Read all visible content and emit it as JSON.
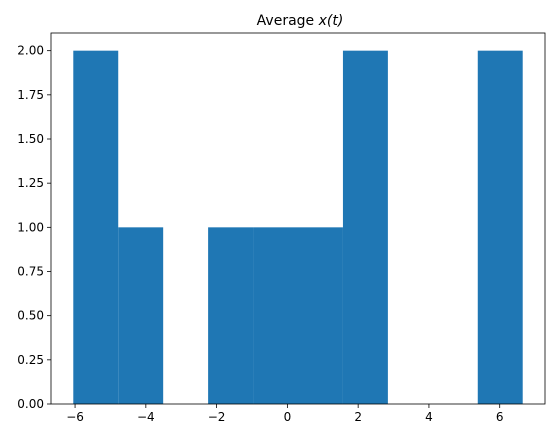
{
  "chart_data": {
    "type": "bar",
    "subtype": "histogram",
    "title": "Average ",
    "title_math": "x(t)",
    "xlabel": "",
    "ylabel": "",
    "bins": [
      {
        "x0": -6.05,
        "x1": -4.78,
        "count": 2
      },
      {
        "x0": -4.78,
        "x1": -3.51,
        "count": 1
      },
      {
        "x0": -3.51,
        "x1": -2.24,
        "count": 0
      },
      {
        "x0": -2.24,
        "x1": -0.97,
        "count": 1
      },
      {
        "x0": -0.97,
        "x1": 0.3,
        "count": 1
      },
      {
        "x0": 0.3,
        "x1": 1.57,
        "count": 1
      },
      {
        "x0": 1.57,
        "x1": 2.84,
        "count": 2
      },
      {
        "x0": 2.84,
        "x1": 4.11,
        "count": 0
      },
      {
        "x0": 4.11,
        "x1": 5.38,
        "count": 0
      },
      {
        "x0": 5.38,
        "x1": 6.65,
        "count": 2
      }
    ],
    "xlim": [
      -6.68,
      7.28
    ],
    "ylim": [
      0,
      2.1
    ],
    "xticks": [
      -6,
      -4,
      -2,
      0,
      2,
      4,
      6
    ],
    "xtick_labels": [
      "−6",
      "−4",
      "−2",
      "0",
      "2",
      "4",
      "6"
    ],
    "yticks": [
      0,
      0.25,
      0.5,
      0.75,
      1.0,
      1.25,
      1.5,
      1.75,
      2.0
    ],
    "ytick_labels": [
      "0.00",
      "0.25",
      "0.50",
      "0.75",
      "1.00",
      "1.25",
      "1.50",
      "1.75",
      "2.00"
    ],
    "grid": false,
    "bar_color": "#1f77b4"
  }
}
